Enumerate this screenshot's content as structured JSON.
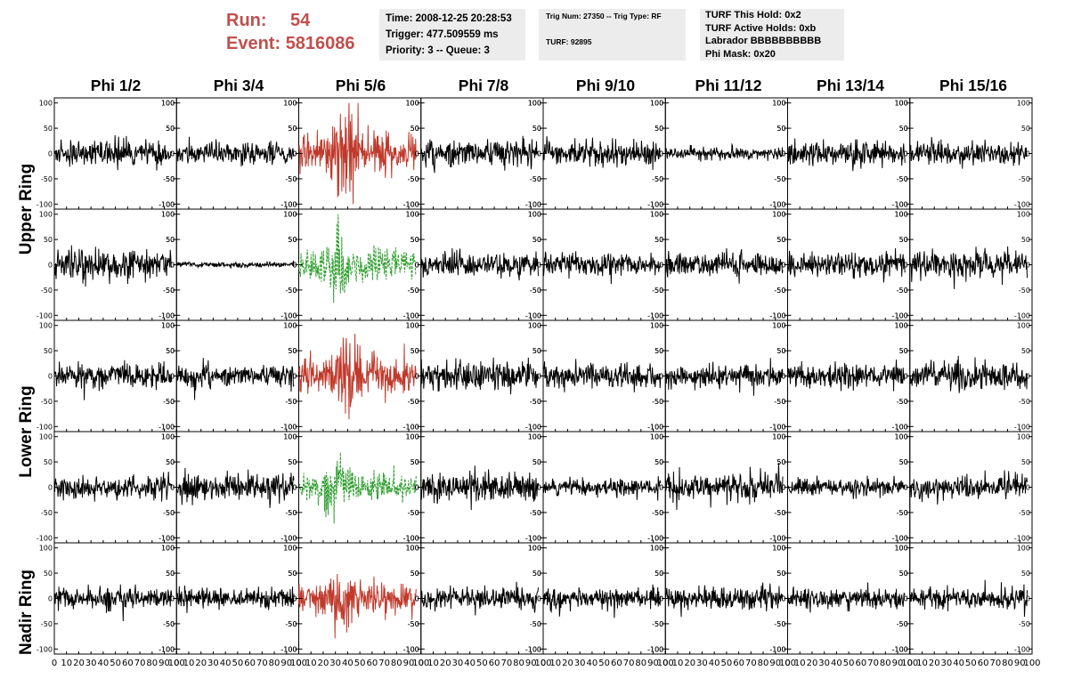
{
  "header": {
    "run_label": "Run:",
    "run_value": "54",
    "event_label": "Event:",
    "event_value": "5816086"
  },
  "info_box_1": {
    "time": "Time: 2008-12-25 20:28:53",
    "trigger": "Trigger: 477.509559 ms",
    "priority": "Priority: 3 -- Queue: 3"
  },
  "info_box_2": {
    "trig_line": "Trig Num: 27350 -- Trig Type: RF",
    "turf_line": "TURF: 92895"
  },
  "info_box_3": {
    "this_hold": "TURF This Hold: 0x2",
    "active_holds": "TURF Active Holds: 0xb",
    "labrador": "Labrador BBBBBBBBBB",
    "phi_mask": "Phi Mask: 0x20"
  },
  "colors": {
    "highlight_trace": "#c0392b",
    "green_trace": "#2e9e2e",
    "normal_trace": "#000000",
    "header_red": "#c0504d",
    "info_box_bg": "#ececec"
  },
  "chart_data": {
    "type": "line",
    "columns": [
      "Phi 1/2",
      "Phi 3/4",
      "Phi 5/6",
      "Phi 7/8",
      "Phi 9/10",
      "Phi 11/12",
      "Phi 13/14",
      "Phi 15/16"
    ],
    "ring_labels": [
      "Upper Ring",
      "Lower Ring",
      "Nadir Ring"
    ],
    "row_count": 5,
    "xlim": [
      0,
      100
    ],
    "ylim": [
      -110,
      110
    ],
    "x_tick_labels": [
      "0",
      "10",
      "20",
      "30",
      "40",
      "50",
      "60",
      "70",
      "80",
      "90",
      "100"
    ],
    "x_tick_values": [
      0,
      10,
      20,
      30,
      40,
      50,
      60,
      70,
      80,
      90,
      100
    ],
    "y_tick_labels": [
      "100",
      "50",
      "0",
      "-50",
      "-100"
    ],
    "y_tick_values": [
      100,
      50,
      0,
      -50,
      -100
    ],
    "samples_per_trace": 260,
    "trace_x_range": [
      0,
      96
    ],
    "panels": [
      {
        "row": 0,
        "col": 0,
        "amp": 13,
        "style": "normal",
        "seed": 11
      },
      {
        "row": 0,
        "col": 1,
        "amp": 12,
        "style": "normal",
        "seed": 12
      },
      {
        "row": 0,
        "col": 2,
        "amp": 22,
        "style": "red",
        "burst": 40,
        "seed": 13
      },
      {
        "row": 0,
        "col": 3,
        "amp": 15,
        "style": "normal",
        "seed": 14
      },
      {
        "row": 0,
        "col": 4,
        "amp": 13,
        "style": "normal",
        "seed": 15
      },
      {
        "row": 0,
        "col": 5,
        "amp": 7,
        "style": "normal",
        "seed": 16
      },
      {
        "row": 0,
        "col": 6,
        "amp": 13,
        "style": "normal",
        "seed": 17
      },
      {
        "row": 0,
        "col": 7,
        "amp": 13,
        "style": "normal",
        "seed": 18
      },
      {
        "row": 1,
        "col": 0,
        "amp": 17,
        "style": "normal",
        "seed": 21
      },
      {
        "row": 1,
        "col": 1,
        "amp": 3,
        "style": "normal",
        "seed": 22
      },
      {
        "row": 1,
        "col": 2,
        "amp": 18,
        "style": "green",
        "burst": 32,
        "seed": 23
      },
      {
        "row": 1,
        "col": 3,
        "amp": 13,
        "style": "normal",
        "seed": 24
      },
      {
        "row": 1,
        "col": 4,
        "amp": 12,
        "style": "normal",
        "seed": 25
      },
      {
        "row": 1,
        "col": 5,
        "amp": 13,
        "style": "normal",
        "seed": 26
      },
      {
        "row": 1,
        "col": 6,
        "amp": 13,
        "style": "normal",
        "seed": 27
      },
      {
        "row": 1,
        "col": 7,
        "amp": 15,
        "style": "normal",
        "seed": 28
      },
      {
        "row": 2,
        "col": 0,
        "amp": 13,
        "style": "normal",
        "seed": 31
      },
      {
        "row": 2,
        "col": 1,
        "amp": 12,
        "style": "normal",
        "seed": 32
      },
      {
        "row": 2,
        "col": 2,
        "amp": 22,
        "style": "red",
        "burst": 40,
        "seed": 33
      },
      {
        "row": 2,
        "col": 3,
        "amp": 15,
        "style": "normal",
        "seed": 34
      },
      {
        "row": 2,
        "col": 4,
        "amp": 13,
        "style": "normal",
        "seed": 35
      },
      {
        "row": 2,
        "col": 5,
        "amp": 13,
        "style": "normal",
        "seed": 36
      },
      {
        "row": 2,
        "col": 6,
        "amp": 13,
        "style": "normal",
        "seed": 37
      },
      {
        "row": 2,
        "col": 7,
        "amp": 14,
        "style": "normal",
        "seed": 38
      },
      {
        "row": 3,
        "col": 0,
        "amp": 13,
        "style": "normal",
        "seed": 41
      },
      {
        "row": 3,
        "col": 1,
        "amp": 16,
        "style": "normal",
        "seed": 42
      },
      {
        "row": 3,
        "col": 2,
        "amp": 14,
        "style": "green",
        "burst": 30,
        "seed": 43
      },
      {
        "row": 3,
        "col": 3,
        "amp": 16,
        "style": "normal",
        "seed": 44
      },
      {
        "row": 3,
        "col": 4,
        "amp": 9,
        "style": "normal",
        "seed": 45
      },
      {
        "row": 3,
        "col": 5,
        "amp": 15,
        "style": "normal",
        "seed": 46
      },
      {
        "row": 3,
        "col": 6,
        "amp": 9,
        "style": "normal",
        "seed": 47
      },
      {
        "row": 3,
        "col": 7,
        "amp": 13,
        "style": "normal",
        "seed": 48
      },
      {
        "row": 4,
        "col": 0,
        "amp": 12,
        "style": "normal",
        "seed": 51
      },
      {
        "row": 4,
        "col": 1,
        "amp": 11,
        "style": "normal",
        "seed": 52
      },
      {
        "row": 4,
        "col": 2,
        "amp": 16,
        "style": "red",
        "burst": 38,
        "seed": 53
      },
      {
        "row": 4,
        "col": 3,
        "amp": 13,
        "style": "normal",
        "seed": 54
      },
      {
        "row": 4,
        "col": 4,
        "amp": 11,
        "style": "normal",
        "seed": 55
      },
      {
        "row": 4,
        "col": 5,
        "amp": 12,
        "style": "normal",
        "seed": 56
      },
      {
        "row": 4,
        "col": 6,
        "amp": 11,
        "style": "normal",
        "seed": 57
      },
      {
        "row": 4,
        "col": 7,
        "amp": 12,
        "style": "normal",
        "seed": 58
      }
    ]
  }
}
